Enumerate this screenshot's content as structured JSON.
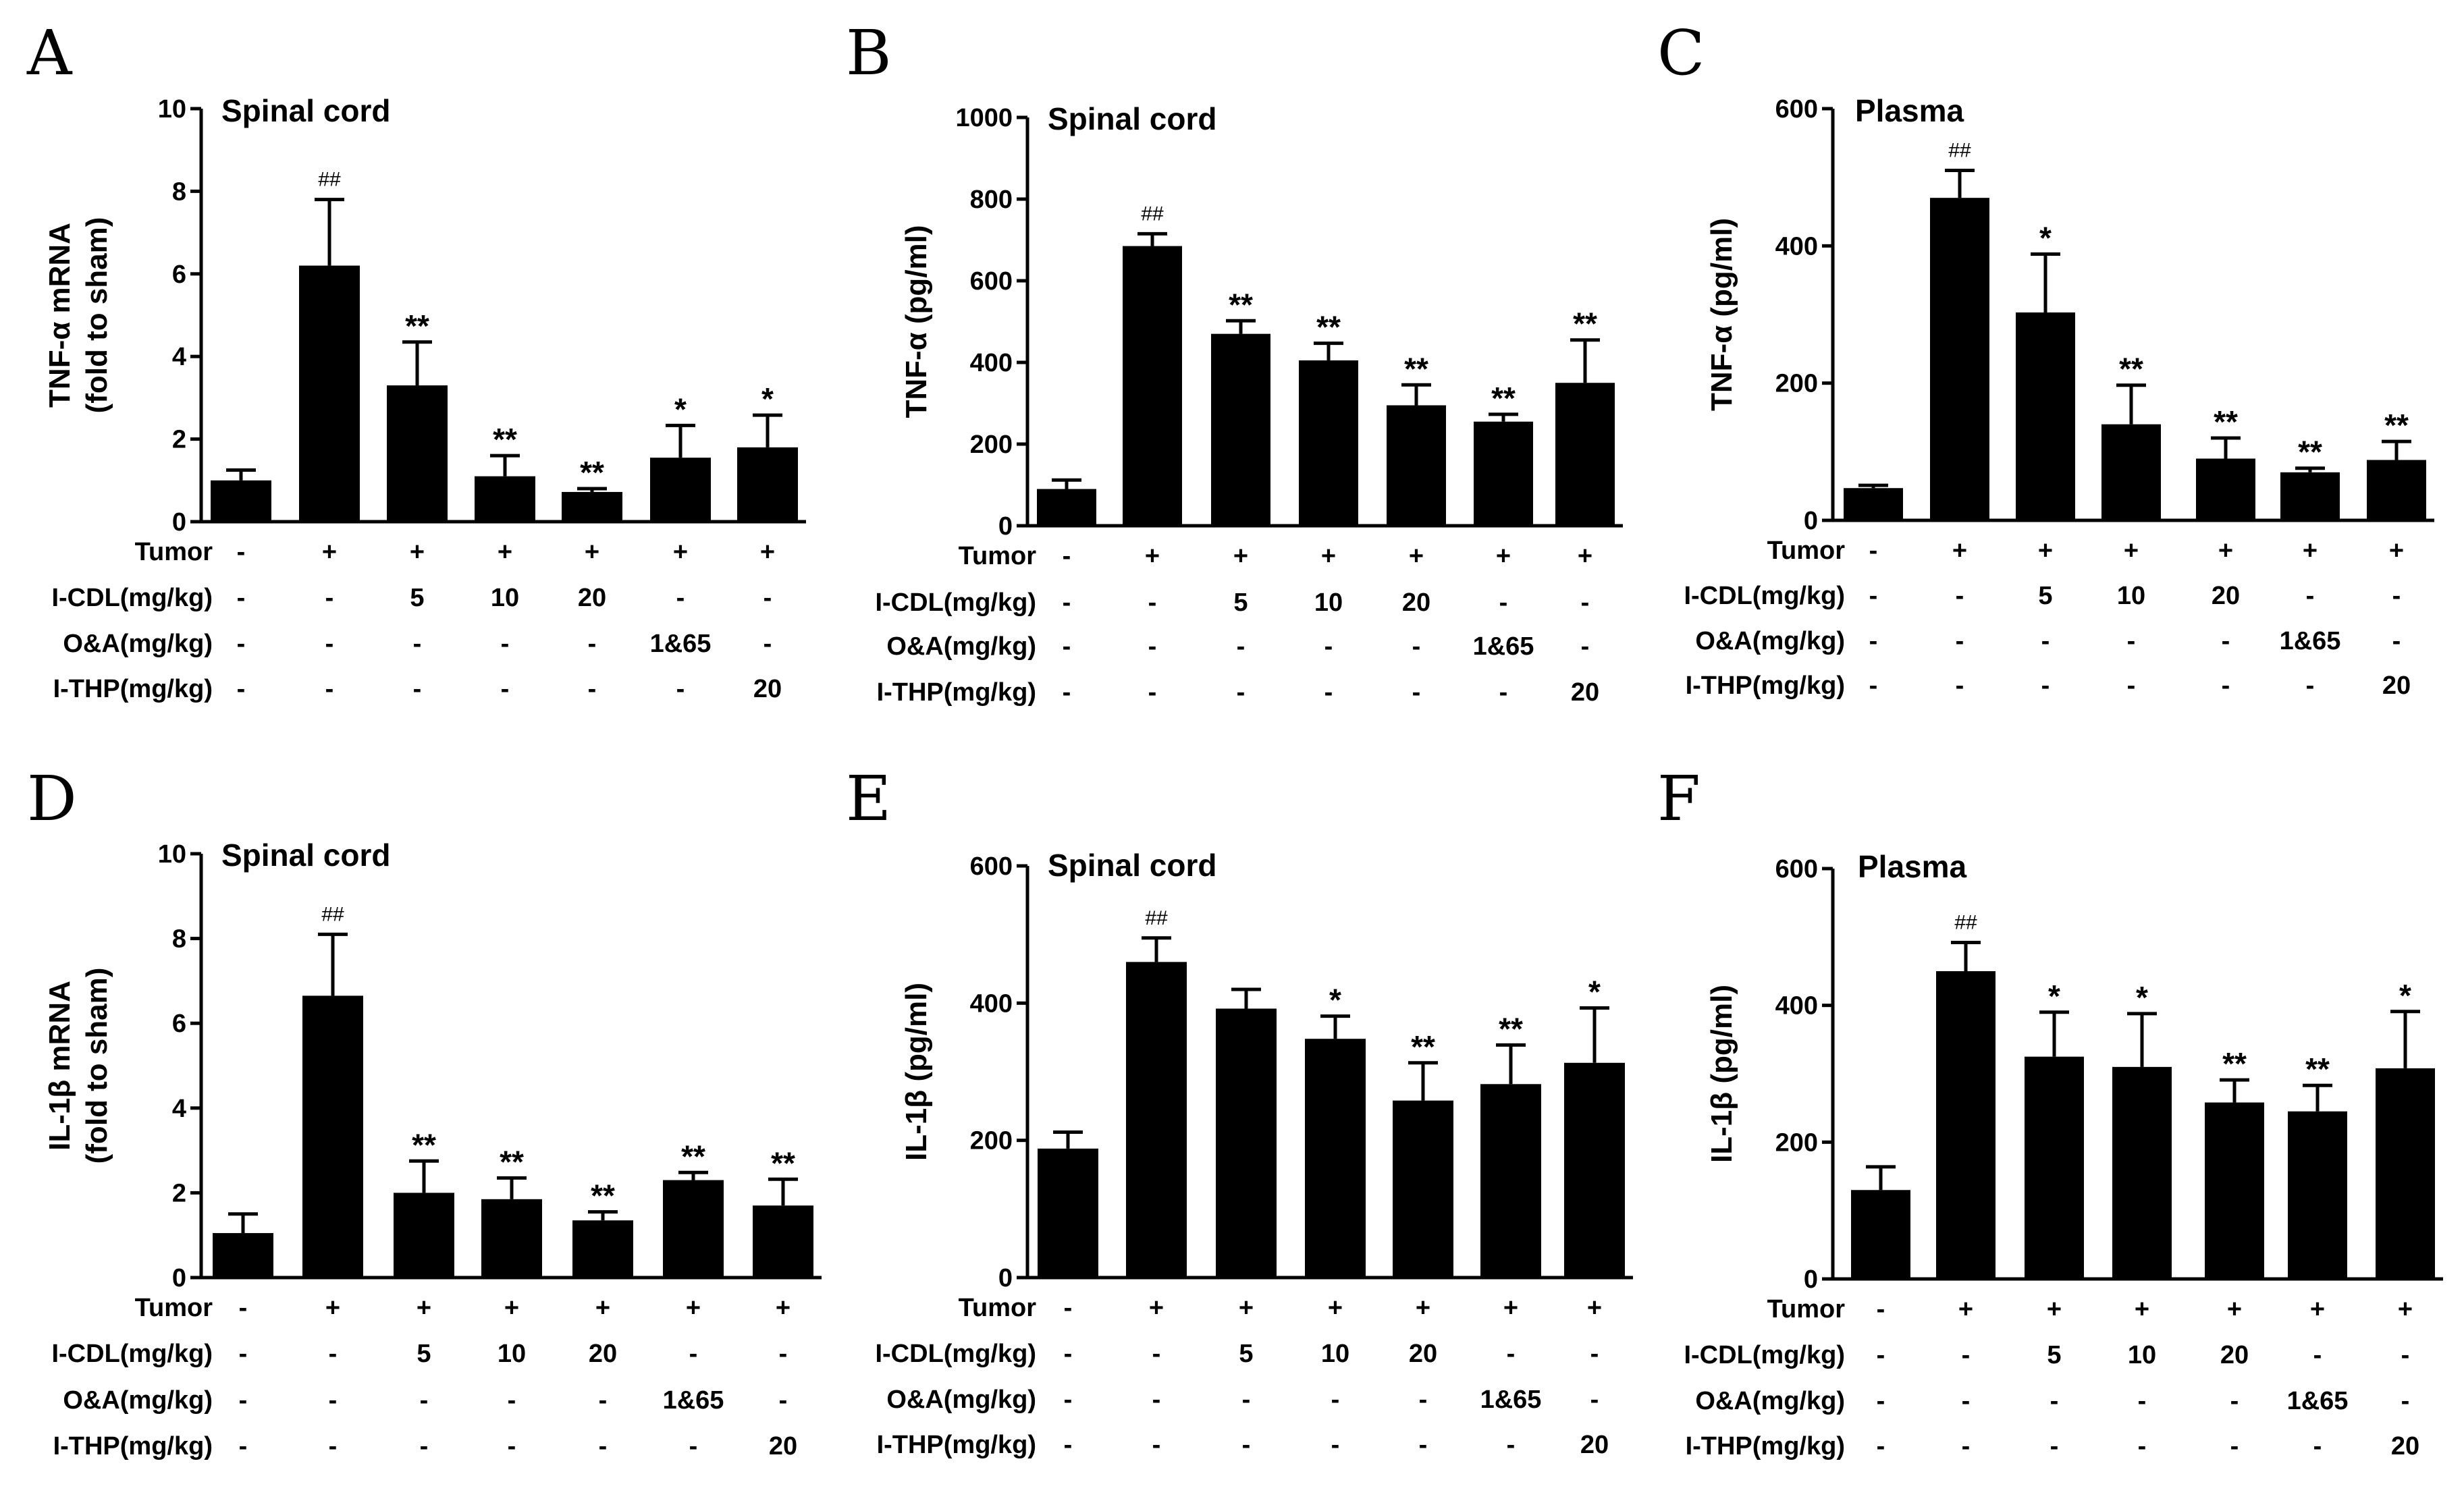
{
  "figure": {
    "panels": [
      {
        "letter": "A"
      },
      {
        "letter": "B"
      },
      {
        "letter": "C"
      },
      {
        "letter": "D"
      },
      {
        "letter": "E"
      },
      {
        "letter": "F"
      }
    ],
    "groups": {
      "row_labels": [
        "Tumor",
        "I-CDL(mg/kg)",
        "O&A(mg/kg)",
        "I-THP(mg/kg)"
      ],
      "rows": [
        [
          "-",
          "+",
          "+",
          "+",
          "+",
          "+",
          "+"
        ],
        [
          "-",
          "-",
          "5",
          "10",
          "20",
          "-",
          "-"
        ],
        [
          "-",
          "-",
          "-",
          "-",
          "-",
          "1&65",
          "-"
        ],
        [
          "-",
          "-",
          "-",
          "-",
          "-",
          "-",
          "20"
        ]
      ]
    }
  },
  "chart_data": [
    {
      "type": "bar",
      "panel": "A",
      "title": "Spinal cord",
      "ylabel_lines": [
        "TNF-α  mRNA",
        "(fold to sham)"
      ],
      "ylim": [
        0,
        10
      ],
      "yticks": [
        0,
        2,
        4,
        6,
        8,
        10
      ],
      "values": [
        1.0,
        6.2,
        3.3,
        1.1,
        0.72,
        1.55,
        1.8
      ],
      "errors": [
        0.25,
        1.6,
        1.05,
        0.5,
        0.08,
        0.78,
        0.78
      ],
      "significance": [
        "",
        "##",
        "**",
        "**",
        "**",
        "*",
        "*"
      ]
    },
    {
      "type": "bar",
      "panel": "B",
      "title": "Spinal cord",
      "ylabel_lines": [
        "TNF-α  (pg/ml)"
      ],
      "ylim": [
        0,
        1000
      ],
      "yticks": [
        0,
        200,
        400,
        600,
        800,
        1000
      ],
      "values": [
        90,
        685,
        470,
        405,
        295,
        255,
        350
      ],
      "errors": [
        22,
        30,
        32,
        42,
        50,
        18,
        105
      ],
      "significance": [
        "",
        "##",
        "**",
        "**",
        "**",
        "**",
        "**"
      ]
    },
    {
      "type": "bar",
      "panel": "C",
      "title": "Plasma",
      "ylabel_lines": [
        "TNF-α  (pg/ml)"
      ],
      "ylim": [
        0,
        600
      ],
      "yticks": [
        0,
        200,
        400,
        600
      ],
      "values": [
        47,
        470,
        303,
        140,
        90,
        70,
        88
      ],
      "errors": [
        4,
        40,
        85,
        57,
        30,
        6,
        27
      ],
      "significance": [
        "",
        "##",
        "*",
        "**",
        "**",
        "**",
        "**"
      ]
    },
    {
      "type": "bar",
      "panel": "D",
      "title": "Spinal cord",
      "ylabel_lines": [
        "IL-1β  mRNA",
        "(fold to sham)"
      ],
      "ylim": [
        0,
        10
      ],
      "yticks": [
        0,
        2,
        4,
        6,
        8,
        10
      ],
      "values": [
        1.05,
        6.65,
        2.0,
        1.85,
        1.35,
        2.3,
        1.7
      ],
      "errors": [
        0.45,
        1.45,
        0.75,
        0.5,
        0.2,
        0.18,
        0.62
      ],
      "significance": [
        "",
        "##",
        "**",
        "**",
        "**",
        "**",
        "**"
      ]
    },
    {
      "type": "bar",
      "panel": "E",
      "title": "Spinal cord",
      "ylabel_lines": [
        "IL-1β  (pg/ml)"
      ],
      "ylim": [
        0,
        600
      ],
      "yticks": [
        0,
        200,
        400,
        600
      ],
      "values": [
        188,
        460,
        392,
        348,
        258,
        282,
        313
      ],
      "errors": [
        24,
        35,
        28,
        33,
        55,
        57,
        80
      ],
      "significance": [
        "",
        "##",
        "",
        "*",
        "**",
        "**",
        "*"
      ]
    },
    {
      "type": "bar",
      "panel": "F",
      "title": "Plasma",
      "ylabel_lines": [
        "IL-1β  (pg/ml)"
      ],
      "ylim": [
        0,
        600
      ],
      "yticks": [
        0,
        200,
        400,
        600
      ],
      "values": [
        130,
        450,
        325,
        310,
        258,
        245,
        308
      ],
      "errors": [
        34,
        42,
        65,
        78,
        33,
        38,
        83
      ],
      "significance": [
        "",
        "##",
        "*",
        "*",
        "**",
        "**",
        "*"
      ]
    }
  ]
}
